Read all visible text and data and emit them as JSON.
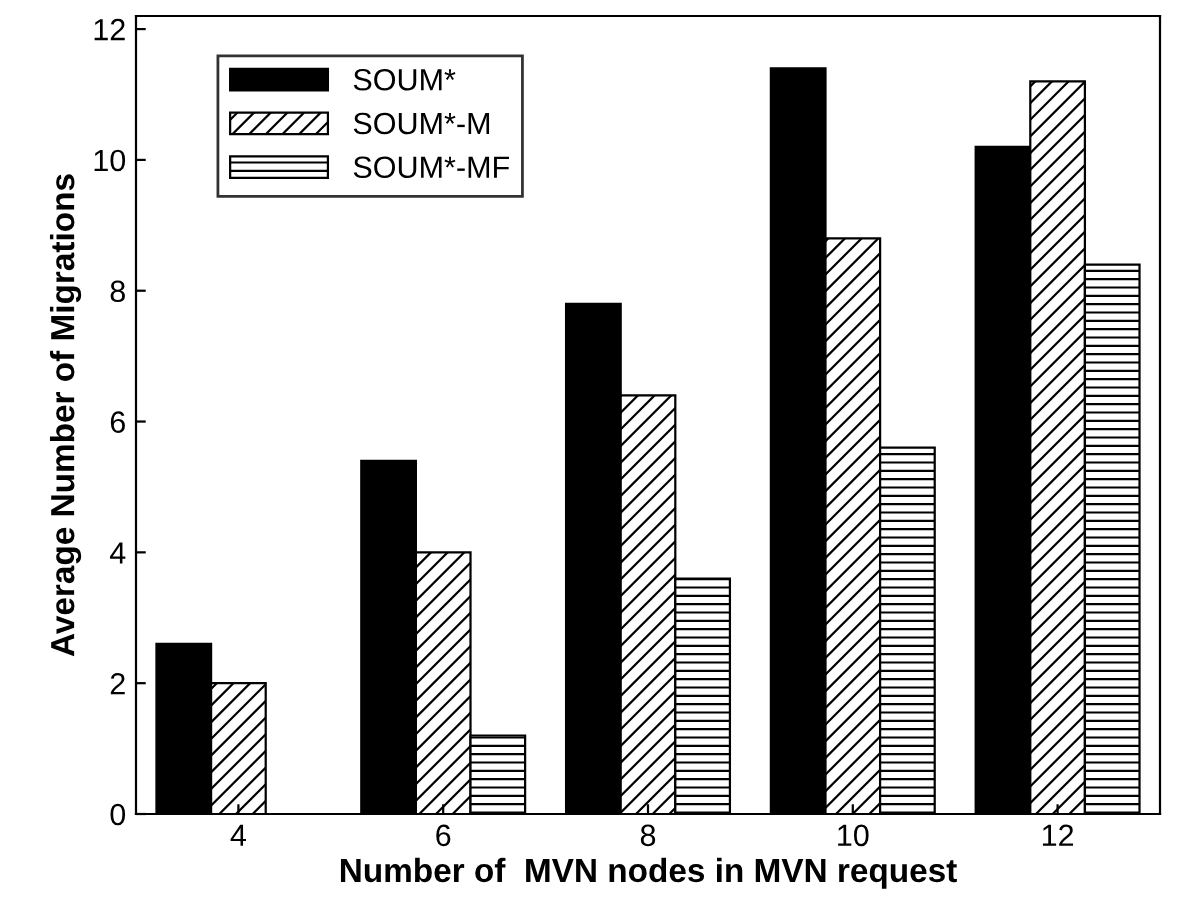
{
  "chart_data": {
    "type": "bar",
    "xlabel": "Number of  MVN nodes in MVN request",
    "ylabel": "Average Number of Migrations",
    "categories": [
      "4",
      "6",
      "8",
      "10",
      "12"
    ],
    "series": [
      {
        "name": "SOUM*",
        "color": "#000000",
        "values": [
          2.6,
          5.4,
          7.8,
          11.4,
          10.2
        ]
      },
      {
        "name": "SOUM*-M",
        "color": "#000000",
        "values": [
          2.0,
          4.0,
          6.4,
          8.8,
          11.2
        ]
      },
      {
        "name": "SOUM*-MF",
        "color": "#000000",
        "values": [
          null,
          1.2,
          3.6,
          5.6,
          8.4
        ]
      }
    ],
    "ylim": [
      0,
      12.2
    ],
    "yticks": [
      0,
      2,
      4,
      6,
      8,
      10,
      12
    ],
    "grid": false,
    "legend": "top left"
  }
}
